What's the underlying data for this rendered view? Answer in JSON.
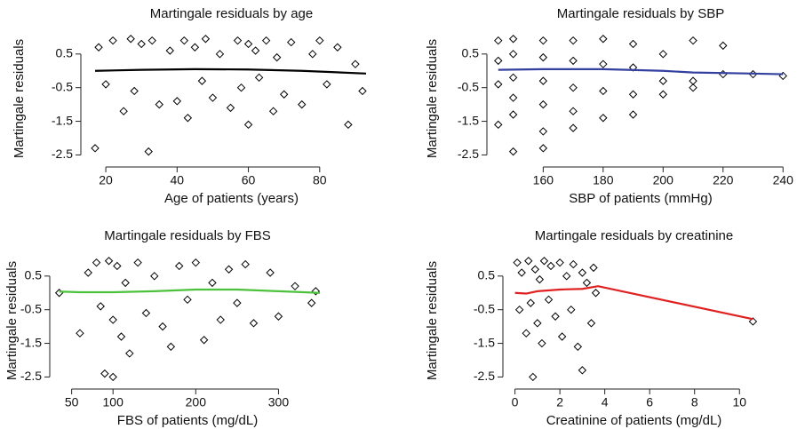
{
  "chart_data": [
    {
      "type": "scatter",
      "title": "Martingale residuals by age",
      "x_label": "Age of patients (years)",
      "y_label": "Martingale residuals",
      "xlim": [
        14.5,
        96
      ],
      "ylim": [
        -2.7,
        1.05
      ],
      "xticks": [
        20,
        40,
        60,
        80
      ],
      "yticks": [
        0.5,
        -0.5,
        -1.5,
        -2.5
      ],
      "series": [
        {
          "marker": "diamond",
          "color": "#000000",
          "x": [
            17,
            18,
            20,
            22,
            25,
            27,
            28,
            30,
            32,
            33,
            35,
            38,
            40,
            42,
            43,
            45,
            47,
            48,
            50,
            52,
            55,
            57,
            58,
            60,
            60,
            62,
            63,
            65,
            67,
            68,
            70,
            72,
            75,
            78,
            80,
            82,
            85,
            88,
            90,
            92
          ],
          "values": [
            -2.3,
            0.7,
            -0.4,
            0.9,
            -1.2,
            0.95,
            -0.6,
            0.8,
            -2.4,
            0.9,
            -1.0,
            0.6,
            -0.9,
            0.9,
            -1.4,
            0.7,
            -0.3,
            0.95,
            -0.8,
            0.5,
            -1.1,
            0.9,
            -0.5,
            0.8,
            -1.6,
            0.6,
            -0.2,
            0.9,
            -1.2,
            0.4,
            -0.7,
            0.85,
            -1.0,
            0.5,
            0.9,
            -0.4,
            0.7,
            -1.6,
            0.2,
            -0.6
          ]
        },
        {
          "marker": "line",
          "color": "#000000",
          "x": [
            17,
            30,
            45,
            60,
            75,
            93
          ],
          "values": [
            0.0,
            0.03,
            0.05,
            0.04,
            0.0,
            -0.08
          ]
        }
      ]
    },
    {
      "type": "scatter",
      "title": "Martingale residuals by SBP",
      "x_label": "SBP of patients (mmHg)",
      "y_label": "Martingale residuals",
      "xlim": [
        143,
        242
      ],
      "ylim": [
        -2.7,
        1.05
      ],
      "xticks": [
        160,
        180,
        200,
        220,
        240
      ],
      "yticks": [
        0.5,
        -0.5,
        -1.5,
        -2.5
      ],
      "series": [
        {
          "marker": "diamond",
          "color": "#000000",
          "x": [
            145,
            145,
            145,
            145,
            150,
            150,
            150,
            150,
            150,
            150,
            160,
            160,
            160,
            160,
            160,
            160,
            170,
            170,
            170,
            170,
            170,
            180,
            180,
            180,
            180,
            190,
            190,
            190,
            190,
            200,
            200,
            200,
            210,
            210,
            210,
            220,
            220,
            230,
            240
          ],
          "values": [
            0.9,
            0.3,
            -0.4,
            -1.6,
            0.95,
            0.5,
            -0.2,
            -0.8,
            -1.3,
            -2.4,
            0.9,
            0.4,
            -0.3,
            -1.0,
            -1.8,
            -2.3,
            0.9,
            0.3,
            -0.5,
            -1.2,
            -1.7,
            0.95,
            0.2,
            -0.6,
            -1.4,
            0.8,
            0.1,
            -0.7,
            -1.3,
            0.5,
            -0.3,
            -0.7,
            0.9,
            -0.3,
            -0.5,
            0.75,
            -0.1,
            -0.1,
            -0.15
          ]
        },
        {
          "marker": "line",
          "color": "#3340a0",
          "x": [
            145,
            160,
            180,
            200,
            210,
            230,
            240
          ],
          "values": [
            0.03,
            0.05,
            0.05,
            0.0,
            -0.05,
            -0.08,
            -0.1
          ]
        }
      ]
    },
    {
      "type": "scatter",
      "title": "Martingale residuals by FBS",
      "x_label": "FBS of patients (mg/dL)",
      "y_label": "Martingale residuals",
      "xlim": [
        30,
        350
      ],
      "ylim": [
        -2.7,
        1.05
      ],
      "xticks": [
        50,
        100,
        200,
        300
      ],
      "yticks": [
        0.5,
        -0.5,
        -1.5,
        -2.5
      ],
      "series": [
        {
          "marker": "diamond",
          "color": "#000000",
          "x": [
            35,
            60,
            70,
            80,
            85,
            90,
            95,
            100,
            100,
            105,
            110,
            115,
            120,
            130,
            140,
            150,
            160,
            170,
            180,
            190,
            200,
            210,
            220,
            230,
            240,
            250,
            260,
            270,
            290,
            300,
            320,
            340,
            345
          ],
          "values": [
            0.0,
            -1.2,
            0.6,
            0.9,
            -0.4,
            -2.4,
            0.95,
            -2.5,
            -0.8,
            0.8,
            -1.3,
            0.3,
            -1.8,
            0.9,
            -0.6,
            0.5,
            -1.0,
            -1.6,
            0.8,
            -0.2,
            0.9,
            -1.4,
            0.3,
            -0.8,
            0.7,
            -0.3,
            0.85,
            -0.9,
            0.6,
            -0.7,
            0.2,
            -0.3,
            0.05
          ]
        },
        {
          "marker": "line",
          "color": "#4cc23c",
          "x": [
            35,
            60,
            100,
            150,
            200,
            250,
            300,
            350
          ],
          "values": [
            0.04,
            0.02,
            0.02,
            0.05,
            0.1,
            0.1,
            0.05,
            0.0
          ]
        }
      ]
    },
    {
      "type": "scatter",
      "title": "Martingale residuals by creatinine",
      "x_label": "Creatinine of patients (mg/dL)",
      "y_label": "Martingale residuals",
      "xlim": [
        -0.3,
        10.9
      ],
      "ylim": [
        -2.7,
        1.05
      ],
      "xticks": [
        0,
        2,
        4,
        6,
        8,
        10
      ],
      "yticks": [
        0.5,
        -0.5,
        -1.5,
        -2.5
      ],
      "series": [
        {
          "marker": "diamond",
          "color": "#000000",
          "x": [
            0.1,
            0.2,
            0.3,
            0.5,
            0.6,
            0.7,
            0.8,
            0.9,
            1.0,
            1.1,
            1.2,
            1.3,
            1.5,
            1.6,
            1.8,
            2.0,
            2.1,
            2.3,
            2.5,
            2.6,
            2.8,
            3.0,
            3.0,
            3.2,
            3.4,
            3.5,
            3.6,
            10.6
          ],
          "values": [
            0.9,
            -0.5,
            0.6,
            -1.2,
            0.95,
            -0.3,
            -2.5,
            0.7,
            -0.9,
            0.4,
            -1.5,
            0.95,
            -0.2,
            0.8,
            -0.7,
            0.9,
            -1.3,
            0.5,
            -0.5,
            0.85,
            -1.6,
            0.6,
            -2.3,
            0.3,
            -0.9,
            0.75,
            0.0,
            -0.85
          ]
        },
        {
          "marker": "line",
          "color": "#e02020",
          "x": [
            0,
            0.5,
            1,
            2,
            3,
            3.7,
            10.6
          ],
          "values": [
            0.0,
            -0.02,
            0.05,
            0.1,
            0.12,
            0.2,
            -0.78
          ]
        }
      ]
    }
  ]
}
